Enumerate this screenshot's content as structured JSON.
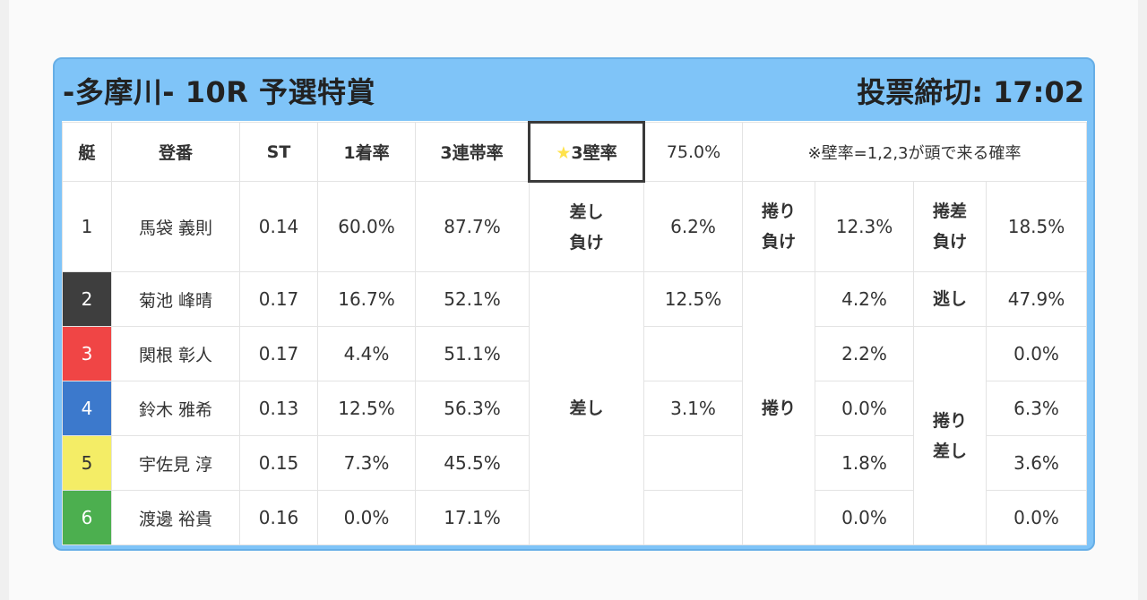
{
  "race": {
    "title": "-多摩川- 10R 予選特賞",
    "deadline": "投票締切: 17:02"
  },
  "header": {
    "waku": "艇",
    "toban": "登番",
    "st": "ST",
    "win_rate": "1着率",
    "top3_rate": "3連帯率",
    "wall_star": "★",
    "wall_label": "3壁率",
    "wall_rate": "75.0%",
    "wall_note": "※壁率=1,2,3が頭で来る確率"
  },
  "racers": [
    {
      "waku": "1",
      "name": "馬袋 義則",
      "st": "0.14",
      "win": "60.0%",
      "top3": "87.7%",
      "color": "#ffffff"
    },
    {
      "waku": "2",
      "name": "菊池 峰晴",
      "st": "0.17",
      "win": "16.7%",
      "top3": "52.1%",
      "color": "#3e3e3e"
    },
    {
      "waku": "3",
      "name": "関根 彰人",
      "st": "0.17",
      "win": "4.4%",
      "top3": "51.1%",
      "color": "#f04545"
    },
    {
      "waku": "4",
      "name": "鈴木 雅希",
      "st": "0.13",
      "win": "12.5%",
      "top3": "56.3%",
      "color": "#3c79cc"
    },
    {
      "waku": "5",
      "name": "宇佐見 淳",
      "st": "0.15",
      "win": "7.3%",
      "top3": "45.5%",
      "color": "#f4ed66"
    },
    {
      "waku": "6",
      "name": "渡邊 裕貴",
      "st": "0.16",
      "win": "0.0%",
      "top3": "17.1%",
      "color": "#4caf4f"
    }
  ],
  "kimarite": {
    "sashi_make_1": "差し",
    "sashi_make_2": "負け",
    "sashi_make_rate": "6.2%",
    "makuri_make_1": "捲り",
    "makuri_make_2": "負け",
    "makuri_make_rate": "12.3%",
    "makurizashi_make_1": "捲差",
    "makurizashi_make_2": "負け",
    "makurizashi_make_rate": "18.5%",
    "sashi": "差し",
    "sashi_rates": [
      "12.5%",
      "",
      "3.1%",
      "",
      ""
    ],
    "makuri": "捲り",
    "makuri_rates": [
      "4.2%",
      "2.2%",
      "0.0%",
      "1.8%",
      "0.0%"
    ],
    "nige": "逃し",
    "nige_rate": "47.9%",
    "makurizashi_1": "捲り",
    "makurizashi_2": "差し",
    "makurizashi_rates": [
      "0.0%",
      "6.3%",
      "3.6%",
      "0.0%"
    ]
  }
}
